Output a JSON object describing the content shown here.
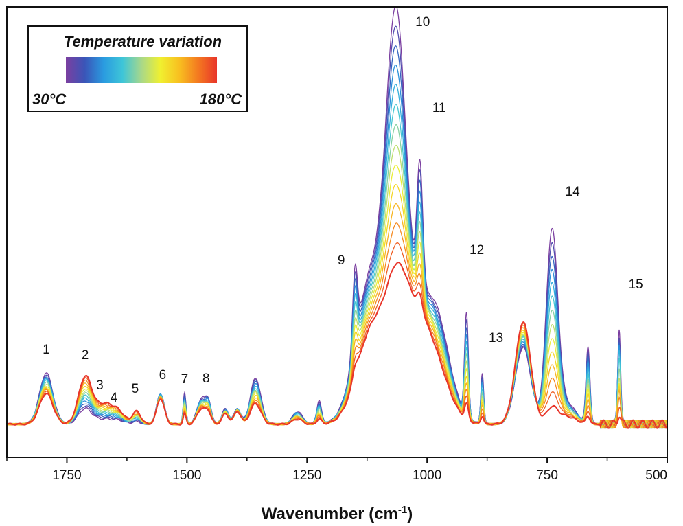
{
  "chart_data": {
    "type": "line",
    "title": "",
    "xlabel_main": "Wavenumber (cm",
    "xlabel_sup": "-1",
    "xlabel_close": ")",
    "ylabel": "",
    "xlim": [
      1875,
      500
    ],
    "x_reversed": true,
    "xticks": [
      1750,
      1500,
      1250,
      1000,
      750,
      500
    ],
    "xtick_labels": [
      "1750",
      "1500",
      "1250",
      "1000",
      "750",
      "500"
    ],
    "y_axis_ticks_shown": false,
    "grid": false,
    "legend": {
      "placement": "top-left",
      "title": "Temperature variation",
      "low_label": "30°C",
      "high_label": "180°C",
      "colormap": [
        "#7b3fa0",
        "#3a55b8",
        "#2a9be0",
        "#3ec5d8",
        "#a8d88a",
        "#f0f030",
        "#f8c020",
        "#f47a20",
        "#e8352a"
      ]
    },
    "series_count": 14,
    "temperature_range_C": [
      30,
      180
    ],
    "peaks": [
      {
        "label": "1",
        "x": 1793
      },
      {
        "label": "2",
        "x": 1712
      },
      {
        "label": "3",
        "x": 1670
      },
      {
        "label": "4",
        "x": 1645
      },
      {
        "label": "5",
        "x": 1605
      },
      {
        "label": "6",
        "x": 1555
      },
      {
        "label": "7",
        "x": 1505
      },
      {
        "label": "8",
        "x": 1460
      },
      {
        "label": "9",
        "x": 1150
      },
      {
        "label": "10",
        "x": 1045
      },
      {
        "label": "11",
        "x": 1015
      },
      {
        "label": "12",
        "x": 918
      },
      {
        "label": "13",
        "x": 885
      },
      {
        "label": "14",
        "x": 740
      },
      {
        "label": "15",
        "x": 597
      }
    ],
    "spectra_shape": {
      "baseline": 0.03,
      "components": [
        {
          "center": 1793,
          "width": 14,
          "amp_30C": 0.1,
          "amp_180C": 0.06
        },
        {
          "center": 1712,
          "width": 14,
          "amp_30C": 0.03,
          "amp_180C": 0.09
        },
        {
          "center": 1670,
          "width": 20,
          "amp_30C": 0.01,
          "amp_180C": 0.04
        },
        {
          "center": 1640,
          "width": 12,
          "amp_30C": 0.005,
          "amp_180C": 0.015
        },
        {
          "center": 1605,
          "width": 9,
          "amp_30C": 0.005,
          "amp_180C": 0.025
        },
        {
          "center": 1555,
          "width": 8,
          "amp_30C": 0.06,
          "amp_180C": 0.05
        },
        {
          "center": 1505,
          "width": 3,
          "amp_30C": 0.06,
          "amp_180C": 0.02
        },
        {
          "center": 1470,
          "width": 9,
          "amp_30C": 0.05,
          "amp_180C": 0.03
        },
        {
          "center": 1455,
          "width": 6,
          "amp_30C": 0.04,
          "amp_180C": 0.02
        },
        {
          "center": 1420,
          "width": 7,
          "amp_30C": 0.03,
          "amp_180C": 0.02
        },
        {
          "center": 1395,
          "width": 7,
          "amp_30C": 0.03,
          "amp_180C": 0.025
        },
        {
          "center": 1357,
          "width": 11,
          "amp_30C": 0.09,
          "amp_180C": 0.04
        },
        {
          "center": 1270,
          "width": 10,
          "amp_30C": 0.025,
          "amp_180C": 0.01
        },
        {
          "center": 1225,
          "width": 5,
          "amp_30C": 0.045,
          "amp_180C": 0.01
        },
        {
          "center": 1150,
          "width": 5,
          "amp_30C": 0.15,
          "amp_180C": 0.02
        },
        {
          "center": 1120,
          "width": 30,
          "amp_30C": 0.25,
          "amp_180C": 0.14
        },
        {
          "center": 1065,
          "width": 20,
          "amp_30C": 0.6,
          "amp_180C": 0.09
        },
        {
          "center": 1040,
          "width": 45,
          "amp_30C": 0.2,
          "amp_180C": 0.23
        },
        {
          "center": 1015,
          "width": 6,
          "amp_30C": 0.25,
          "amp_180C": 0.03
        },
        {
          "center": 980,
          "width": 28,
          "amp_30C": 0.15,
          "amp_180C": 0.05
        },
        {
          "center": 918,
          "width": 4,
          "amp_30C": 0.2,
          "amp_180C": 0.03
        },
        {
          "center": 885,
          "width": 3,
          "amp_30C": 0.1,
          "amp_180C": 0.015
        },
        {
          "center": 800,
          "width": 16,
          "amp_30C": 0.15,
          "amp_180C": 0.2
        },
        {
          "center": 740,
          "width": 12,
          "amp_30C": 0.37,
          "amp_180C": 0.03
        },
        {
          "center": 710,
          "width": 20,
          "amp_30C": 0.04,
          "amp_180C": 0.015
        },
        {
          "center": 665,
          "width": 4,
          "amp_30C": 0.15,
          "amp_180C": 0.015
        },
        {
          "center": 600,
          "width": 3,
          "amp_30C": 0.19,
          "amp_180C": 0.02
        }
      ]
    }
  }
}
